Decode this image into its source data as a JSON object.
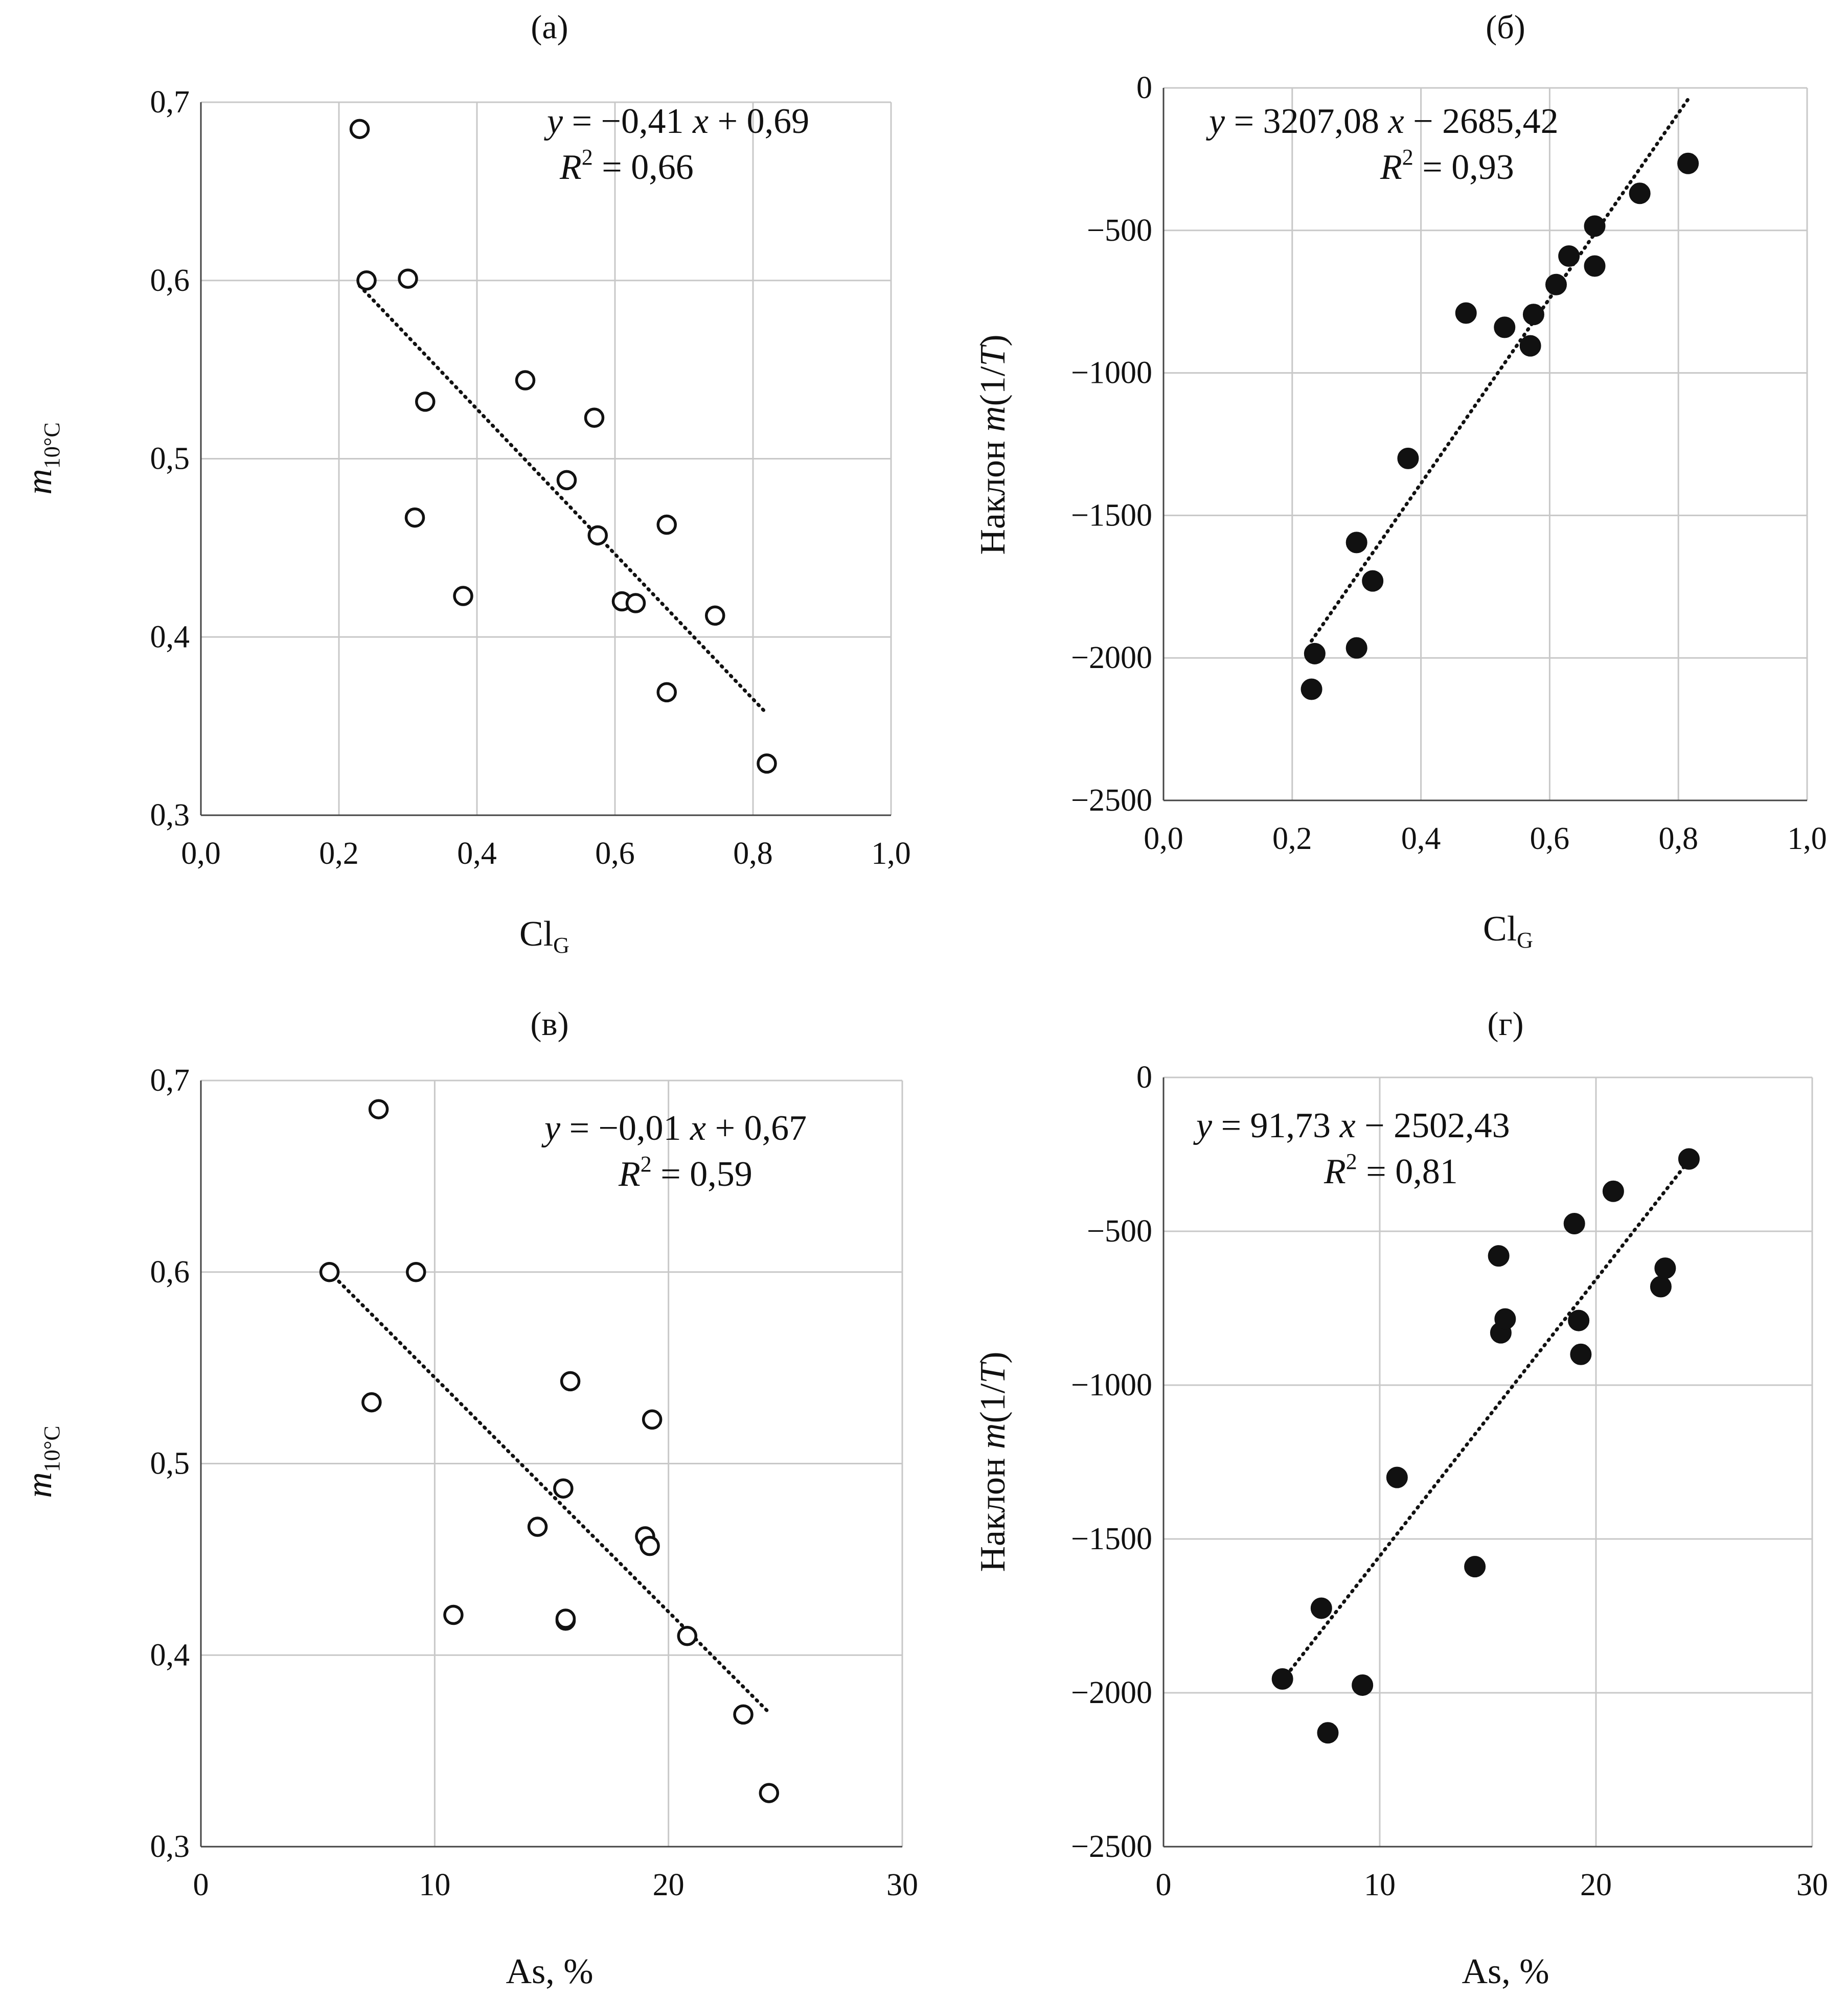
{
  "chart_data": [
    {
      "type": "scatter",
      "panel_label": "(а)",
      "marker": "open",
      "xlabel": {
        "main": "Cl",
        "sub": "G"
      },
      "ylabel": {
        "italic": "m",
        "sub": "10°C"
      },
      "xlim": [
        0,
        1.0
      ],
      "ylim": [
        0.3,
        0.7
      ],
      "xticks": [
        0,
        0.2,
        0.4,
        0.6,
        0.8,
        1.0
      ],
      "xtick_labels": [
        "0,0",
        "0,2",
        "0,4",
        "0,6",
        "0,8",
        "1,0"
      ],
      "yticks": [
        0.3,
        0.4,
        0.5,
        0.6,
        0.7
      ],
      "ytick_labels": [
        "0,3",
        "0,4",
        "0,5",
        "0,6",
        "0,7"
      ],
      "points": [
        [
          0.23,
          0.685
        ],
        [
          0.24,
          0.6
        ],
        [
          0.3,
          0.601
        ],
        [
          0.31,
          0.467
        ],
        [
          0.325,
          0.532
        ],
        [
          0.38,
          0.423
        ],
        [
          0.47,
          0.544
        ],
        [
          0.53,
          0.488
        ],
        [
          0.57,
          0.523
        ],
        [
          0.575,
          0.457
        ],
        [
          0.61,
          0.42
        ],
        [
          0.63,
          0.419
        ],
        [
          0.675,
          0.463
        ],
        [
          0.675,
          0.369
        ],
        [
          0.745,
          0.412
        ],
        [
          0.82,
          0.329
        ]
      ],
      "trendline": {
        "x": [
          0.23,
          0.82
        ],
        "y": [
          0.597,
          0.357
        ]
      },
      "equation": {
        "lhs": "y",
        "rhs_a": " = −0,41 ",
        "var": "x",
        "rhs_b": " + 0,69"
      },
      "r2": {
        "label": "R",
        "sup": "2",
        "value": " = 0,66"
      }
    },
    {
      "type": "scatter",
      "panel_label": "(б)",
      "marker": "filled",
      "xlabel": {
        "main": "Cl",
        "sub": "G"
      },
      "ylabel": {
        "prefix": "Наклон ",
        "italic": "m",
        "suffix": "(1/",
        "italic2": "T",
        "end": ")"
      },
      "xlim": [
        0,
        1.0
      ],
      "ylim": [
        -2500,
        0
      ],
      "xticks": [
        0,
        0.2,
        0.4,
        0.6,
        0.8,
        1.0
      ],
      "xtick_labels": [
        "0,0",
        "0,2",
        "0,4",
        "0,6",
        "0,8",
        "1,0"
      ],
      "yticks": [
        -2500,
        -2000,
        -1500,
        -1000,
        -500,
        0
      ],
      "ytick_labels": [
        "−2500",
        "−2000",
        "−1500",
        "−1000",
        "−500",
        "0"
      ],
      "points": [
        [
          0.23,
          -2110
        ],
        [
          0.235,
          -1985
        ],
        [
          0.3,
          -1965
        ],
        [
          0.3,
          -1595
        ],
        [
          0.325,
          -1730
        ],
        [
          0.38,
          -1300
        ],
        [
          0.47,
          -790
        ],
        [
          0.53,
          -840
        ],
        [
          0.57,
          -905
        ],
        [
          0.575,
          -795
        ],
        [
          0.61,
          -690
        ],
        [
          0.63,
          -590
        ],
        [
          0.67,
          -485
        ],
        [
          0.67,
          -625
        ],
        [
          0.74,
          -370
        ],
        [
          0.815,
          -265
        ]
      ],
      "trendline": {
        "x": [
          0.23,
          0.815
        ],
        "y": [
          -1940,
          -40
        ]
      },
      "equation": {
        "lhs": "y",
        "rhs_a": " = 3207,08  ",
        "var": "x",
        "rhs_b": " − 2685,42"
      },
      "r2": {
        "label": "R",
        "sup": "2",
        "value": " = 0,93"
      }
    },
    {
      "type": "scatter",
      "panel_label": "(в)",
      "marker": "open",
      "xlabel": {
        "main": "As, %",
        "sub": ""
      },
      "ylabel": {
        "italic": "m",
        "sub": "10°C"
      },
      "xlim": [
        0,
        30
      ],
      "ylim": [
        0.3,
        0.7
      ],
      "xticks": [
        0,
        10,
        20,
        30
      ],
      "xtick_labels": [
        "0",
        "10",
        "20",
        "30"
      ],
      "yticks": [
        0.3,
        0.4,
        0.5,
        0.6,
        0.7
      ],
      "ytick_labels": [
        "0,3",
        "0,4",
        "0,5",
        "0,6",
        "0,7"
      ],
      "points": [
        [
          5.5,
          0.6
        ],
        [
          7.3,
          0.532
        ],
        [
          7.6,
          0.685
        ],
        [
          9.2,
          0.6
        ],
        [
          10.8,
          0.421
        ],
        [
          14.4,
          0.467
        ],
        [
          15.5,
          0.487
        ],
        [
          15.6,
          0.418
        ],
        [
          15.6,
          0.419
        ],
        [
          15.8,
          0.543
        ],
        [
          19.0,
          0.462
        ],
        [
          19.2,
          0.457
        ],
        [
          19.3,
          0.523
        ],
        [
          20.8,
          0.41
        ],
        [
          23.2,
          0.369
        ],
        [
          24.3,
          0.328
        ]
      ],
      "trendline": {
        "x": [
          5.5,
          24.3
        ],
        "y": [
          0.6,
          0.37
        ]
      },
      "equation": {
        "lhs": "y",
        "rhs_a": " = −0,01  ",
        "var": "x",
        "rhs_b": " + 0,67"
      },
      "r2": {
        "label": "R",
        "sup": "2",
        "value": " = 0,59"
      }
    },
    {
      "type": "scatter",
      "panel_label": "(г)",
      "marker": "filled",
      "xlabel": {
        "main": "As, %",
        "sub": ""
      },
      "ylabel": {
        "prefix": "Наклон ",
        "italic": "m",
        "suffix": "(1/",
        "italic2": "T",
        "end": ")"
      },
      "xlim": [
        0,
        30
      ],
      "ylim": [
        -2500,
        0
      ],
      "xticks": [
        0,
        10,
        20,
        30
      ],
      "xtick_labels": [
        "0",
        "10",
        "20",
        "30"
      ],
      "yticks": [
        -2500,
        -2000,
        -1500,
        -1000,
        -500,
        0
      ],
      "ytick_labels": [
        "−2500",
        "−2000",
        "−1500",
        "−1000",
        "−500",
        "0"
      ],
      "points": [
        [
          5.5,
          -1955
        ],
        [
          7.3,
          -1725
        ],
        [
          7.6,
          -2130
        ],
        [
          9.2,
          -1975
        ],
        [
          10.8,
          -1300
        ],
        [
          14.4,
          -1590
        ],
        [
          15.5,
          -580
        ],
        [
          15.6,
          -830
        ],
        [
          15.8,
          -785
        ],
        [
          19.0,
          -475
        ],
        [
          19.2,
          -790
        ],
        [
          19.3,
          -900
        ],
        [
          20.8,
          -370
        ],
        [
          23.0,
          -680
        ],
        [
          23.2,
          -620
        ],
        [
          24.3,
          -265
        ]
      ],
      "trendline": {
        "x": [
          5.5,
          24.3
        ],
        "y": [
          -1960,
          -270
        ]
      },
      "equation": {
        "lhs": "y",
        "rhs_a": " = 91,73  ",
        "var": "x",
        "rhs_b": " − 2502,43"
      },
      "r2": {
        "label": "R",
        "sup": "2",
        "value": " = 0,81"
      }
    }
  ]
}
